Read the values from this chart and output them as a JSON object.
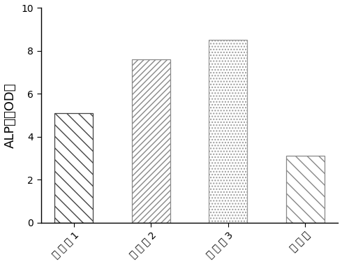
{
  "categories": [
    "实 施 例 1",
    "实 施 例 2",
    "实 施 例 3",
    "对 比 例"
  ],
  "values": [
    5.1,
    7.6,
    8.5,
    3.1
  ],
  "bar_face_colors": [
    "#ffffff",
    "#ffffff",
    "#ffffff",
    "#ffffff"
  ],
  "bar_edge_colors": [
    "#555555",
    "#888888",
    "#999999",
    "#888888"
  ],
  "hatch_list": [
    "\\\\\\\\",
    "////",
    "....",
    "\\\\\\\\"
  ],
  "hatch_colors": [
    "#333333",
    "#aaaaaa",
    "#aaaaaa",
    "#888888"
  ],
  "ylabel": "ALP値（OD）",
  "ylim": [
    0,
    10
  ],
  "yticks": [
    0,
    2,
    4,
    6,
    8,
    10
  ],
  "bar_width": 0.5,
  "background_color": "#ffffff",
  "label_fontsize": 12,
  "tick_fontsize": 10,
  "ylabel_fontsize": 13
}
